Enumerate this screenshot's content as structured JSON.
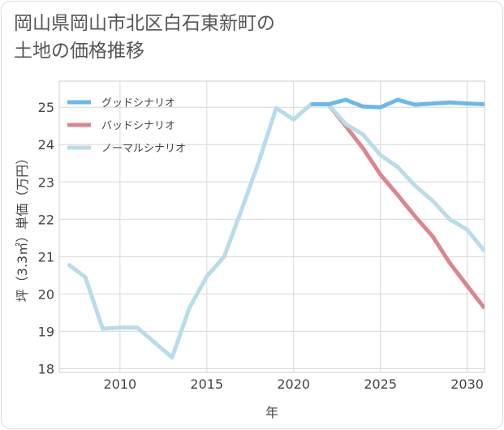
{
  "title_line1": "岡山県岡山市北区白石東新町の",
  "title_line2": "土地の価格推移",
  "chart_data": {
    "type": "line",
    "xlabel": "年",
    "ylabel": "坪（3.3㎡）単価（万円）",
    "xlim": [
      2006.5,
      2031
    ],
    "ylim": [
      17.9,
      25.7
    ],
    "x_ticks": [
      2010,
      2015,
      2020,
      2025,
      2030
    ],
    "y_ticks": [
      18,
      19,
      20,
      21,
      22,
      23,
      24,
      25
    ],
    "grid": true,
    "legend_position": "top-left",
    "series": [
      {
        "name": "グッドシナリオ",
        "color": "#6ab8ec",
        "x": [
          2021,
          2022,
          2023,
          2024,
          2025,
          2026,
          2027,
          2028,
          2029,
          2030,
          2031
        ],
        "y": [
          25.08,
          25.08,
          25.2,
          25.02,
          25.0,
          25.2,
          25.07,
          25.1,
          25.13,
          25.1,
          25.08
        ]
      },
      {
        "name": "バッドシナリオ",
        "color": "#dc8590",
        "x": [
          2021,
          2022,
          2023,
          2024,
          2025,
          2026,
          2027,
          2028,
          2029,
          2030,
          2031
        ],
        "y": [
          25.08,
          25.08,
          24.5,
          23.9,
          23.2,
          22.65,
          22.08,
          21.55,
          20.83,
          20.22,
          19.62
        ]
      },
      {
        "name": "ノーマルシナリオ",
        "color": "#b9dcea",
        "x": [
          2007,
          2008,
          2009,
          2010,
          2011,
          2012,
          2013,
          2014,
          2015,
          2016,
          2017,
          2018,
          2019,
          2020,
          2021,
          2022,
          2023,
          2024,
          2025,
          2026,
          2027,
          2028,
          2029,
          2030,
          2031
        ],
        "y": [
          20.8,
          20.45,
          19.07,
          19.1,
          19.1,
          18.7,
          18.3,
          19.63,
          20.47,
          21.0,
          22.25,
          23.55,
          24.98,
          24.67,
          25.08,
          25.08,
          24.55,
          24.27,
          23.72,
          23.4,
          22.9,
          22.5,
          22.0,
          21.72,
          21.15
        ]
      }
    ]
  }
}
